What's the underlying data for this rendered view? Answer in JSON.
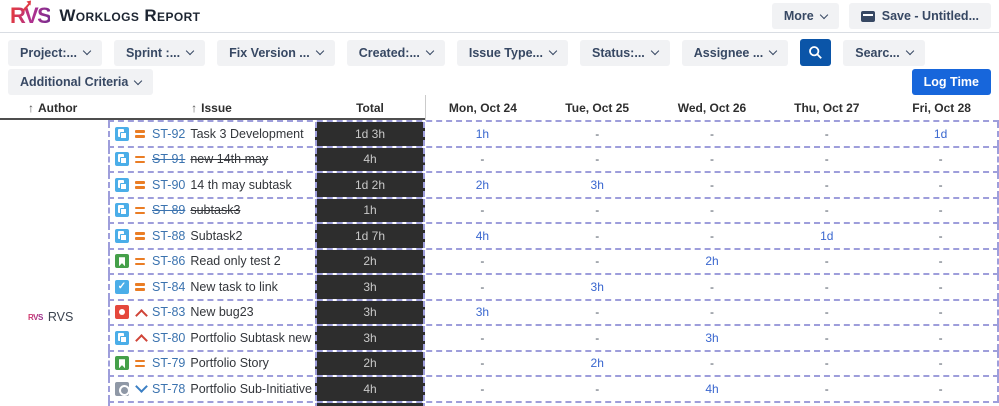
{
  "app": {
    "logo_text": "RVS",
    "title": "Worklogs Report",
    "more_label": "More",
    "save_label": "Save - Untitled..."
  },
  "filters": {
    "items": [
      "Project:...",
      "Sprint :...",
      "Fix Version ...",
      "Created:...",
      "Issue Type...",
      "Status:...",
      "Assignee ..."
    ],
    "search_more_label": "Searc...",
    "additional_criteria_label": "Additional Criteria",
    "log_time_label": "Log Time"
  },
  "table": {
    "author_header": "Author",
    "issue_header": "Issue",
    "total_header": "Total",
    "day_headers": [
      "Mon, Oct 24",
      "Tue, Oct 25",
      "Wed, Oct 26",
      "Thu, Oct 27",
      "Fri, Oct 28"
    ],
    "author": "RVS",
    "rows": [
      {
        "key": "ST-92",
        "summary": "Task 3 Development",
        "type": "subtask",
        "priority": "medium",
        "done": false,
        "total": "1d 3h",
        "days": [
          "1h",
          "-",
          "-",
          "-",
          "1d"
        ]
      },
      {
        "key": "ST-91",
        "summary": "new 14th may",
        "type": "subtask",
        "priority": "medium",
        "done": true,
        "total": "4h",
        "days": [
          "-",
          "-",
          "-",
          "-",
          "-"
        ]
      },
      {
        "key": "ST-90",
        "summary": "14 th may subtask",
        "type": "subtask",
        "priority": "medium",
        "done": false,
        "total": "1d 2h",
        "days": [
          "2h",
          "3h",
          "-",
          "-",
          "-"
        ]
      },
      {
        "key": "ST-89",
        "summary": "subtask3",
        "type": "subtask",
        "priority": "medium",
        "done": true,
        "total": "1h",
        "days": [
          "-",
          "-",
          "-",
          "-",
          "-"
        ]
      },
      {
        "key": "ST-88",
        "summary": "Subtask2",
        "type": "subtask",
        "priority": "medium",
        "done": false,
        "total": "1d 7h",
        "days": [
          "4h",
          "-",
          "-",
          "1d",
          "-"
        ]
      },
      {
        "key": "ST-86",
        "summary": "Read only test 2",
        "type": "story",
        "priority": "medium",
        "done": false,
        "total": "2h",
        "days": [
          "-",
          "-",
          "2h",
          "-",
          "-"
        ]
      },
      {
        "key": "ST-84",
        "summary": "New task to link",
        "type": "task",
        "priority": "medium",
        "done": false,
        "total": "3h",
        "days": [
          "-",
          "3h",
          "-",
          "-",
          "-"
        ]
      },
      {
        "key": "ST-83",
        "summary": "New bug23",
        "type": "bug",
        "priority": "high",
        "done": false,
        "total": "3h",
        "days": [
          "3h",
          "-",
          "-",
          "-",
          "-"
        ]
      },
      {
        "key": "ST-80",
        "summary": "Portfolio Subtask new",
        "type": "subtask",
        "priority": "high",
        "done": false,
        "total": "3h",
        "days": [
          "-",
          "-",
          "3h",
          "-",
          "-"
        ]
      },
      {
        "key": "ST-79",
        "summary": "Portfolio Story",
        "type": "story",
        "priority": "medium",
        "done": false,
        "total": "2h",
        "days": [
          "-",
          "2h",
          "-",
          "-",
          "-"
        ]
      },
      {
        "key": "ST-78",
        "summary": "Portfolio Sub-Initiative",
        "type": "subinitiative",
        "priority": "low",
        "done": false,
        "total": "4h",
        "days": [
          "-",
          "-",
          "4h",
          "-",
          "-"
        ]
      }
    ]
  },
  "colors": {
    "primary_button": "#1766DB",
    "search_button": "#0B55A8",
    "issue_link": "#3B73AF",
    "worklog_link": "#3A67CF",
    "total_cell_bg": "#2D2D2D",
    "row_border": "#9E9EDB",
    "priority_medium": "#EA7D24",
    "priority_high": "#D04437",
    "priority_low": "#3B7FC4"
  }
}
